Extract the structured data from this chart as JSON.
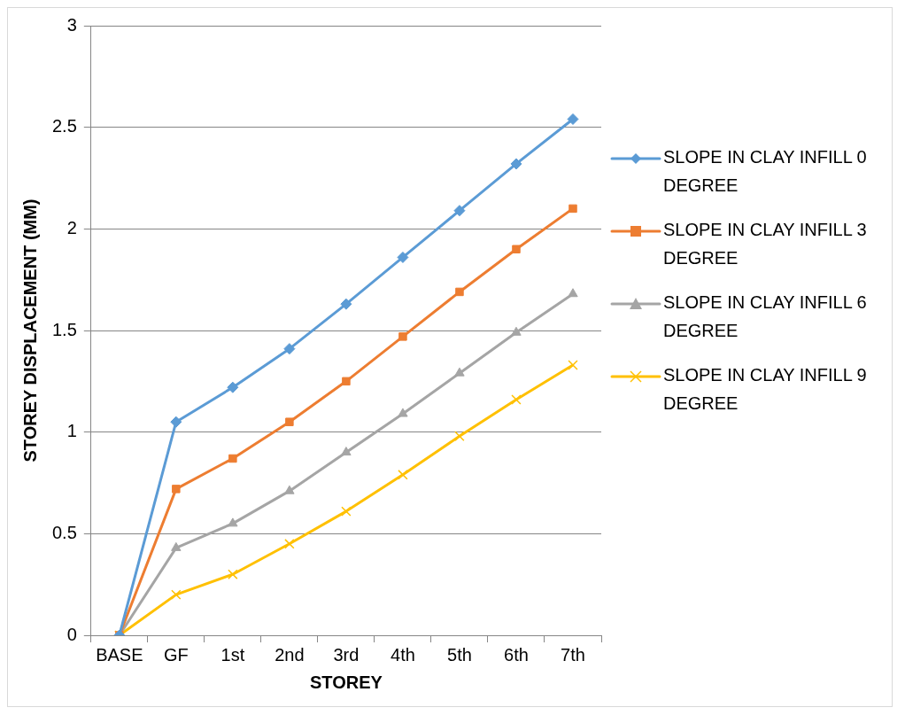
{
  "chart_data": {
    "type": "line",
    "xlabel": "STOREY",
    "ylabel": "STOREY DISPLACEMENT (MM)",
    "categories": [
      "BASE",
      "GF",
      "1st",
      "2nd",
      "3rd",
      "4th",
      "5th",
      "6th",
      "7th"
    ],
    "series": [
      {
        "name": "SLOPE IN CLAY INFILL 0 DEGREE",
        "color": "#5b9bd5",
        "marker": "diamond",
        "values": [
          0,
          1.05,
          1.22,
          1.41,
          1.63,
          1.86,
          2.09,
          2.32,
          2.54
        ]
      },
      {
        "name": "SLOPE IN CLAY INFILL 3 DEGREE",
        "color": "#ed7d31",
        "marker": "square",
        "values": [
          0,
          0.72,
          0.87,
          1.05,
          1.25,
          1.47,
          1.69,
          1.9,
          2.1
        ]
      },
      {
        "name": "SLOPE IN CLAY INFILL 6 DEGREE",
        "color": "#a5a5a5",
        "marker": "triangle",
        "values": [
          0,
          0.43,
          0.55,
          0.71,
          0.9,
          1.09,
          1.29,
          1.49,
          1.68
        ]
      },
      {
        "name": "SLOPE IN CLAY INFILL 9 DEGREE",
        "color": "#ffc000",
        "marker": "cross",
        "values": [
          0,
          0.2,
          0.3,
          0.45,
          0.61,
          0.79,
          0.98,
          1.16,
          1.33
        ]
      }
    ],
    "ylim": [
      0,
      3
    ],
    "yticks": [
      0,
      0.5,
      1,
      1.5,
      2,
      2.5,
      3
    ],
    "grid": "y",
    "legend": "right",
    "line_style": "solid"
  }
}
